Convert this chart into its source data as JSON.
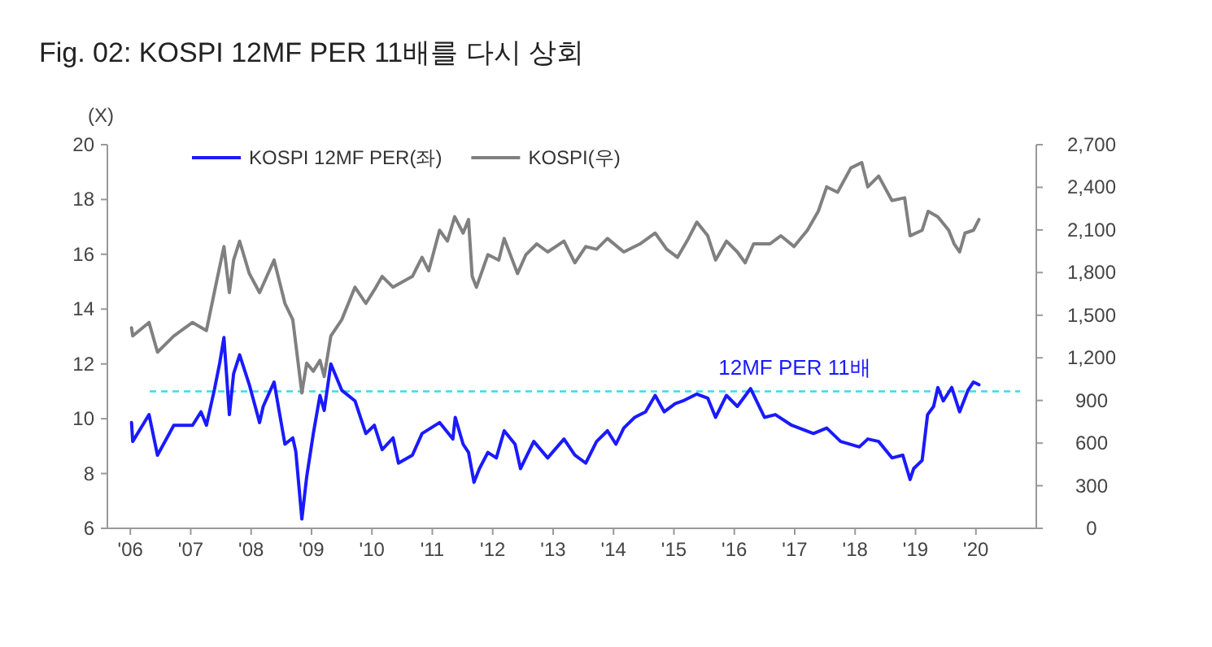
{
  "chart_data": {
    "type": "line",
    "title": "Fig. 02:  KOSPI 12MF PER 11배를 다시 상회",
    "ylabel": "(X)",
    "xlim": [
      2005.62,
      2021.0
    ],
    "xticks": [
      {
        "value": 2006,
        "label": "'06"
      },
      {
        "value": 2007,
        "label": "'07"
      },
      {
        "value": 2008,
        "label": "'08"
      },
      {
        "value": 2009,
        "label": "'09"
      },
      {
        "value": 2010,
        "label": "'10"
      },
      {
        "value": 2011,
        "label": "'11"
      },
      {
        "value": 2012,
        "label": "'12"
      },
      {
        "value": 2013,
        "label": "'13"
      },
      {
        "value": 2014,
        "label": "'14"
      },
      {
        "value": 2015,
        "label": "'15"
      },
      {
        "value": 2016,
        "label": "'16"
      },
      {
        "value": 2017,
        "label": "'17"
      },
      {
        "value": 2018,
        "label": "'18"
      },
      {
        "value": 2019,
        "label": "'19"
      },
      {
        "value": 2020,
        "label": "'20"
      }
    ],
    "ylim": [
      6,
      20
    ],
    "yticks": [
      6,
      8,
      10,
      12,
      14,
      16,
      18,
      20
    ],
    "y2lim": [
      0,
      2700
    ],
    "y2ticks": [
      0,
      300,
      600,
      900,
      {
        "value": 1200,
        "label": "1,200"
      },
      {
        "value": 1500,
        "label": "1,500"
      },
      {
        "value": 1800,
        "label": "1,800"
      },
      {
        "value": 2100,
        "label": "2,100"
      },
      {
        "value": 2400,
        "label": "2,400"
      },
      {
        "value": 2700,
        "label": "2,700"
      }
    ],
    "grid": false,
    "legend": "top",
    "line_style": "solid",
    "marker": "none",
    "ref_lines": [
      {
        "axis": "y",
        "value": 11,
        "label": "12MF PER 11배",
        "color": "#33ddee",
        "line_style": "dashed"
      }
    ],
    "series": [
      {
        "name": "KOSPI 12MF PER(좌)",
        "color": "#1a1aff",
        "x": [
          2006.02,
          2006.04,
          2006.31,
          2006.45,
          2006.72,
          2007.03,
          2007.17,
          2007.26,
          2007.39,
          2007.48,
          2007.55,
          2007.64,
          2007.71,
          2007.81,
          2007.97,
          2008.14,
          2008.2,
          2008.38,
          2008.56,
          2008.69,
          2008.74,
          2008.84,
          2008.92,
          2009.03,
          2009.14,
          2009.21,
          2009.32,
          2009.5,
          2009.72,
          2009.9,
          2010.04,
          2010.17,
          2010.35,
          2010.44,
          2010.67,
          2010.83,
          2011.12,
          2011.34,
          2011.38,
          2011.51,
          2011.6,
          2011.69,
          2011.78,
          2011.92,
          2012.06,
          2012.19,
          2012.37,
          2012.46,
          2012.68,
          2012.91,
          2013.18,
          2013.36,
          2013.54,
          2013.72,
          2013.9,
          2014.04,
          2014.17,
          2014.35,
          2014.53,
          2014.69,
          2014.84,
          2015.02,
          2015.15,
          2015.38,
          2015.56,
          2015.69,
          2015.87,
          2016.05,
          2016.27,
          2016.5,
          2016.68,
          2016.95,
          2017.31,
          2017.53,
          2017.76,
          2018.07,
          2018.21,
          2018.39,
          2018.61,
          2018.79,
          2018.91,
          2018.97,
          2019.11,
          2019.2,
          2019.3,
          2019.37,
          2019.46,
          2019.6,
          2019.73,
          2019.87,
          2019.96,
          2020.05
        ],
        "values": [
          9.86,
          9.17,
          10.15,
          8.67,
          9.76,
          9.76,
          10.25,
          9.76,
          11.04,
          12.03,
          12.96,
          10.15,
          11.64,
          12.33,
          11.24,
          9.86,
          10.45,
          11.34,
          9.07,
          9.3,
          8.8,
          6.34,
          7.88,
          9.46,
          10.85,
          10.3,
          12.0,
          11.04,
          10.65,
          9.46,
          9.76,
          8.87,
          9.3,
          8.38,
          8.67,
          9.46,
          9.86,
          9.26,
          10.05,
          9.07,
          8.77,
          7.68,
          8.18,
          8.77,
          8.57,
          9.56,
          9.07,
          8.18,
          9.17,
          8.57,
          9.26,
          8.67,
          8.38,
          9.17,
          9.56,
          9.07,
          9.66,
          10.05,
          10.25,
          10.85,
          10.25,
          10.55,
          10.65,
          10.9,
          10.75,
          10.05,
          10.85,
          10.45,
          11.1,
          10.05,
          10.15,
          9.76,
          9.46,
          9.66,
          9.17,
          8.97,
          9.26,
          9.17,
          8.57,
          8.67,
          7.78,
          8.18,
          8.48,
          10.15,
          10.45,
          11.14,
          10.65,
          11.14,
          10.25,
          11.04,
          11.34,
          11.24
        ]
      },
      {
        "name": "KOSPI(우)",
        "color": "#808080",
        "axis": "y2",
        "x": [
          2006.02,
          2006.04,
          2006.31,
          2006.45,
          2006.72,
          2007.03,
          2007.26,
          2007.39,
          2007.55,
          2007.64,
          2007.71,
          2007.81,
          2007.97,
          2008.14,
          2008.38,
          2008.56,
          2008.69,
          2008.84,
          2008.92,
          2009.03,
          2009.14,
          2009.21,
          2009.32,
          2009.5,
          2009.72,
          2009.9,
          2010.04,
          2010.17,
          2010.35,
          2010.67,
          2010.83,
          2010.94,
          2011.12,
          2011.25,
          2011.37,
          2011.51,
          2011.6,
          2011.66,
          2011.73,
          2011.92,
          2012.1,
          2012.19,
          2012.41,
          2012.55,
          2012.73,
          2012.91,
          2013.18,
          2013.36,
          2013.54,
          2013.72,
          2013.9,
          2014.17,
          2014.44,
          2014.69,
          2014.88,
          2015.06,
          2015.24,
          2015.38,
          2015.56,
          2015.69,
          2015.87,
          2016.05,
          2016.18,
          2016.32,
          2016.59,
          2016.77,
          2016.99,
          2017.21,
          2017.39,
          2017.53,
          2017.71,
          2017.93,
          2018.11,
          2018.21,
          2018.39,
          2018.61,
          2018.82,
          2018.91,
          2019.11,
          2019.21,
          2019.37,
          2019.55,
          2019.64,
          2019.73,
          2019.82,
          2019.96,
          2020.05
        ],
        "values": [
          1411,
          1354,
          1449,
          1240,
          1354,
          1449,
          1392,
          1659,
          1983,
          1659,
          1888,
          2021,
          1793,
          1659,
          1888,
          1583,
          1468,
          953,
          1163,
          1106,
          1182,
          1068,
          1354,
          1468,
          1697,
          1583,
          1678,
          1773,
          1697,
          1773,
          1907,
          1812,
          2098,
          2021,
          2193,
          2078,
          2173,
          1773,
          1697,
          1926,
          1888,
          2040,
          1793,
          1926,
          2002,
          1945,
          2021,
          1869,
          1983,
          1964,
          2040,
          1945,
          2002,
          2078,
          1964,
          1907,
          2040,
          2155,
          2059,
          1888,
          2021,
          1945,
          1869,
          2002,
          2002,
          2059,
          1983,
          2098,
          2231,
          2403,
          2365,
          2536,
          2574,
          2403,
          2479,
          2307,
          2326,
          2059,
          2098,
          2231,
          2193,
          2098,
          2002,
          1945,
          2078,
          2098,
          2173
        ]
      }
    ]
  }
}
